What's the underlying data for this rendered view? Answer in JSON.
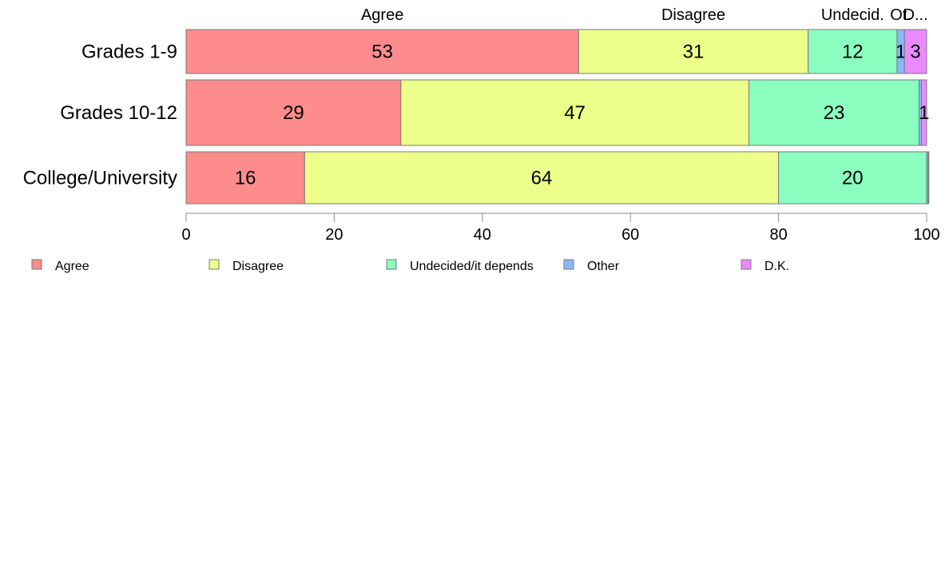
{
  "chart_data": {
    "type": "bar",
    "orientation": "horizontal",
    "stacked": true,
    "categories": [
      "Grades 1-9",
      "Grades 10-12",
      "College/University"
    ],
    "series": [
      {
        "name": "Agree",
        "color": "#FF8C8C",
        "values": [
          53,
          29,
          16
        ]
      },
      {
        "name": "Disagree",
        "color": "#EDFF8A",
        "values": [
          31,
          47,
          64
        ]
      },
      {
        "name": "Undecided/it depends",
        "color": "#8AFFC0",
        "values": [
          12,
          23,
          20
        ]
      },
      {
        "name": "Other",
        "color": "#8AB8FF",
        "values": [
          1,
          0.3,
          0.2
        ]
      },
      {
        "name": "D.K.",
        "color": "#EB8AFF",
        "values": [
          3,
          0.7,
          0.1
        ]
      }
    ],
    "value_labels": [
      [
        "53",
        "31",
        "12",
        "1",
        "3"
      ],
      [
        "29",
        "47",
        "23",
        "",
        "1"
      ],
      [
        "16",
        "64",
        "20",
        "",
        ""
      ]
    ],
    "top_labels": [
      "Agree",
      "Disagree",
      "Undecid.",
      "Ot.",
      "D..."
    ],
    "xlim": [
      0,
      100
    ],
    "xticks": [
      "0",
      "20",
      "40",
      "60",
      "80",
      "100"
    ],
    "legend_position": "bottom",
    "grid": false
  }
}
